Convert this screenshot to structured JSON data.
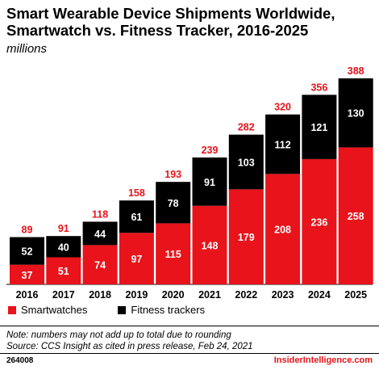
{
  "header": {
    "title": "Smart Wearable Device Shipments Worldwide, Smartwatch vs. Fitness Tracker, 2016-2025",
    "subtitle": "millions"
  },
  "colors": {
    "smartwatches": "#e8131b",
    "fitness_trackers": "#000000",
    "total_label": "#e8131b",
    "segment_label": "#ffffff"
  },
  "chart_data": {
    "type": "bar",
    "stacked": true,
    "categories": [
      "2016",
      "2017",
      "2018",
      "2019",
      "2020",
      "2021",
      "2022",
      "2023",
      "2024",
      "2025"
    ],
    "series": [
      {
        "name": "Smartwatches",
        "values": [
          37,
          51,
          74,
          97,
          115,
          148,
          179,
          208,
          236,
          258
        ]
      },
      {
        "name": "Fitness trackers",
        "values": [
          52,
          40,
          44,
          61,
          78,
          91,
          103,
          112,
          121,
          130
        ]
      }
    ],
    "totals": [
      89,
      91,
      118,
      158,
      193,
      239,
      282,
      320,
      356,
      388
    ],
    "title": "Smart Wearable Device Shipments Worldwide, Smartwatch vs. Fitness Tracker, 2016-2025",
    "subtitle": "millions",
    "xlabel": "",
    "ylabel": "",
    "ylim": [
      0,
      388
    ],
    "grid": false,
    "legend_position": "bottom-left"
  },
  "legend": {
    "smartwatches": "Smartwatches",
    "fitness_trackers": "Fitness trackers"
  },
  "footer": {
    "note": "Note: numbers may not add up to total due to rounding",
    "source": "Source: CCS Insight as cited in press release, Feb 24, 2021",
    "chart_id": "264008",
    "brand": "InsiderIntelligence.com"
  }
}
